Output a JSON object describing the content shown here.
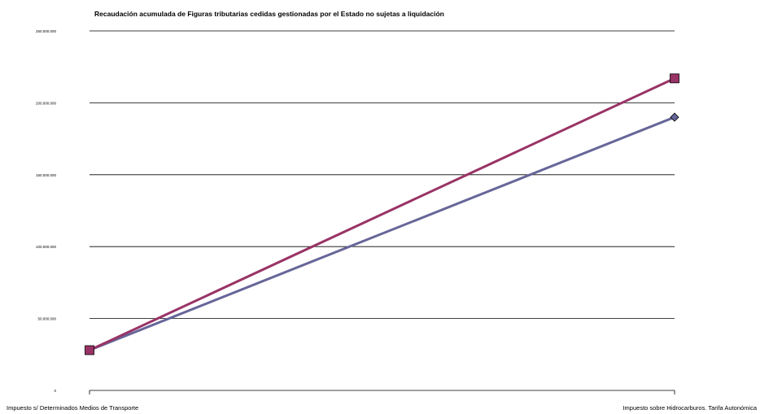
{
  "chart_data": {
    "type": "line",
    "title": "Recaudación acumulada de  Figuras tributarias cedidas gestionadas por el Estado no sujetas a liquidación",
    "xlabel": "",
    "ylabel": "",
    "categories": [
      "Impuesto s/ Determinados Medios de Transporte",
      "Impuesto sobre Hidrocarburos. Tarifa Autonómica"
    ],
    "ylim": [
      0,
      250000000
    ],
    "yticks": [
      0,
      50000000,
      100000000,
      150000000,
      200000000,
      250000000
    ],
    "ytick_labels": [
      "0",
      "50.000.000",
      "100.000.000",
      "150.000.000",
      "200.000.000",
      "250.000.000"
    ],
    "grid": true,
    "legend": "none",
    "series": [
      {
        "values": [
          28000000,
          190000000
        ],
        "color": "#666699",
        "marker": "diamond"
      },
      {
        "values": [
          28000000,
          217000000
        ],
        "color": "#993366",
        "marker": "square"
      }
    ]
  }
}
